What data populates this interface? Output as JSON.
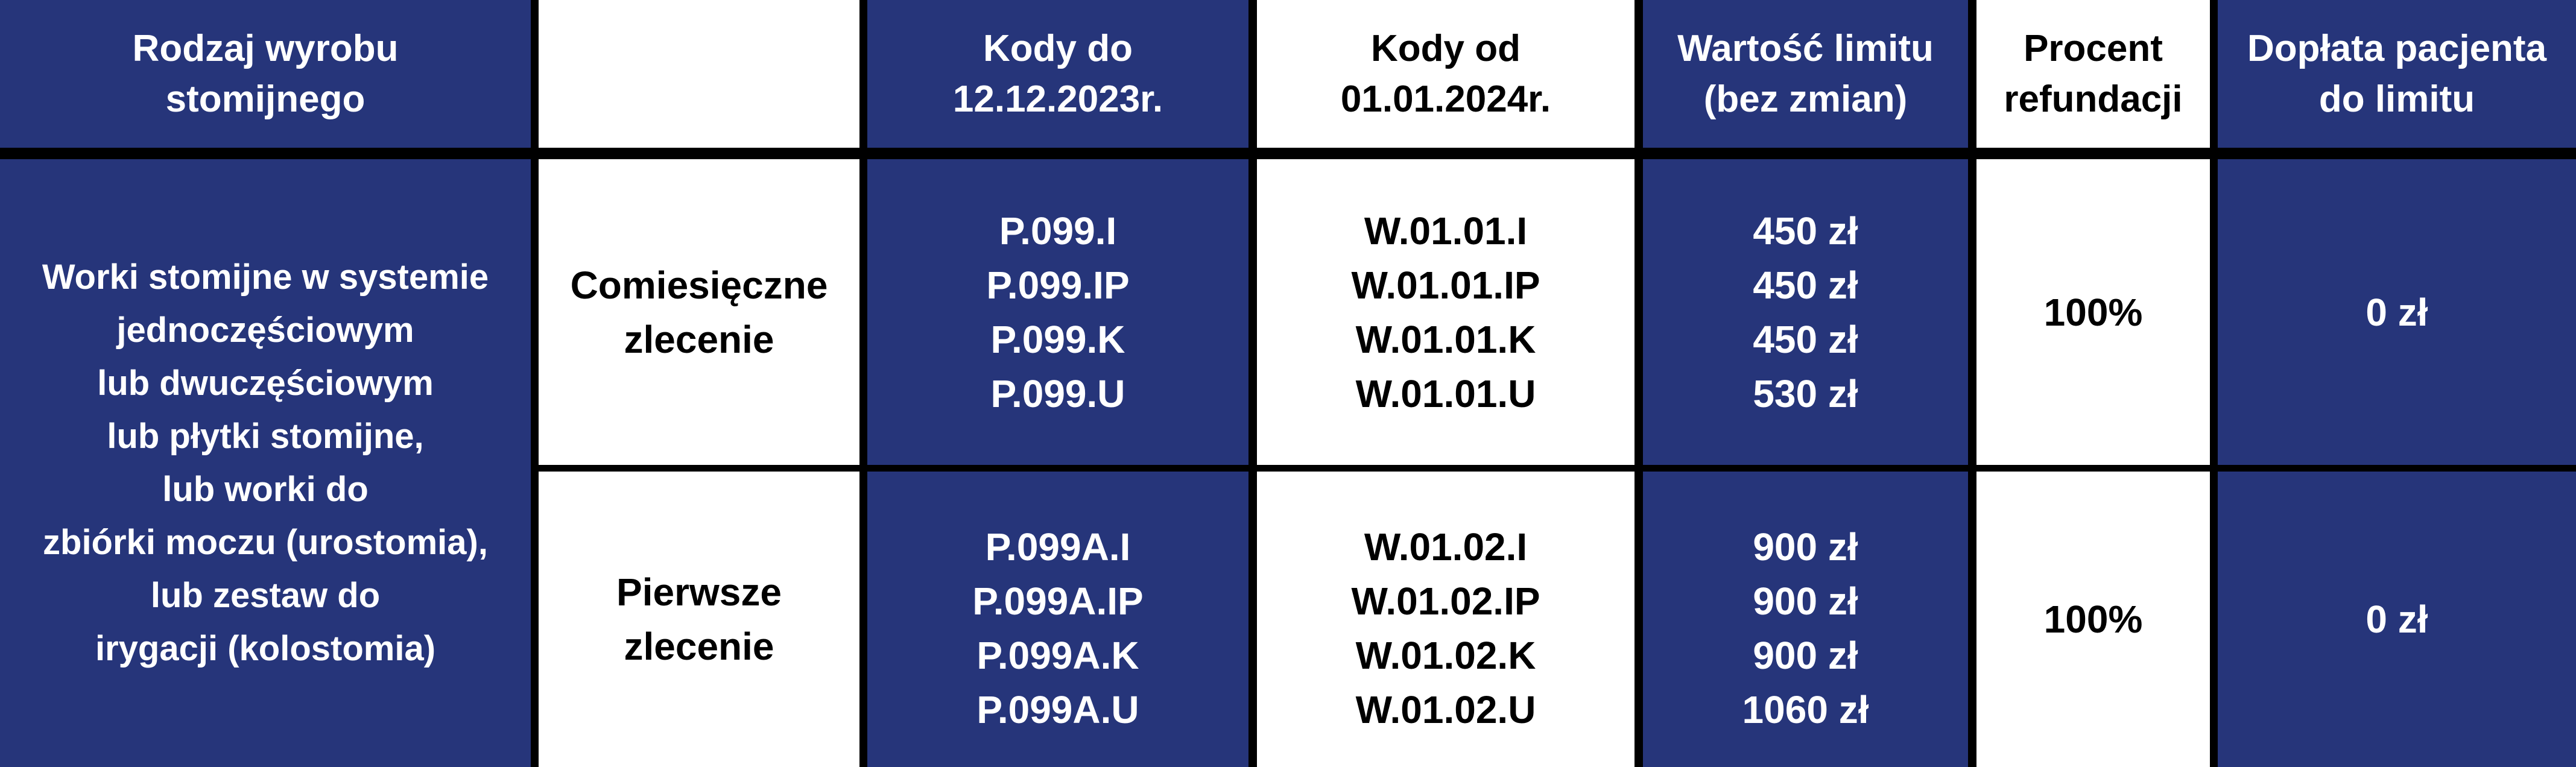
{
  "colors": {
    "navy": "#26357a",
    "white": "#ffffff",
    "border": "#000000"
  },
  "header": {
    "col1": [
      "Rodzaj wyrobu",
      "stomijnego"
    ],
    "col2": [],
    "col3": [
      "Kody do",
      "12.12.2023r."
    ],
    "col4": [
      "Kody od",
      "01.01.2024r."
    ],
    "col5": [
      "Wartość limitu",
      "(bez zmian)"
    ],
    "col6": [
      "Procent",
      "refundacji"
    ],
    "col7": [
      "Dopłata pacjenta",
      "do limitu"
    ]
  },
  "product_type": [
    "Worki stomijne w systemie",
    "jednoczęściowym",
    "lub dwuczęściowym",
    "lub płytki stomijne,",
    "lub worki do",
    "zbiórki moczu (urostomia),",
    "lub zestaw do",
    "irygacji (kolostomia)"
  ],
  "rows": [
    {
      "order_type": [
        "Comiesięczne",
        "zlecenie"
      ],
      "old_codes": [
        "P.099.I",
        "P.099.IP",
        "P.099.K",
        "P.099.U"
      ],
      "new_codes": [
        "W.01.01.I",
        "W.01.01.IP",
        "W.01.01.K",
        "W.01.01.U"
      ],
      "limits": [
        "450 zł",
        "450 zł",
        "450 zł",
        "530 zł"
      ],
      "refund_percent": "100%",
      "patient_copay": "0 zł"
    },
    {
      "order_type": [
        "Pierwsze",
        "zlecenie"
      ],
      "old_codes": [
        "P.099A.I",
        "P.099A.IP",
        "P.099A.K",
        "P.099A.U"
      ],
      "new_codes": [
        "W.01.02.I",
        "W.01.02.IP",
        "W.01.02.K",
        "W.01.02.U"
      ],
      "limits": [
        "900 zł",
        "900 zł",
        "900 zł",
        "1060 zł"
      ],
      "refund_percent": "100%",
      "patient_copay": "0 zł"
    }
  ]
}
